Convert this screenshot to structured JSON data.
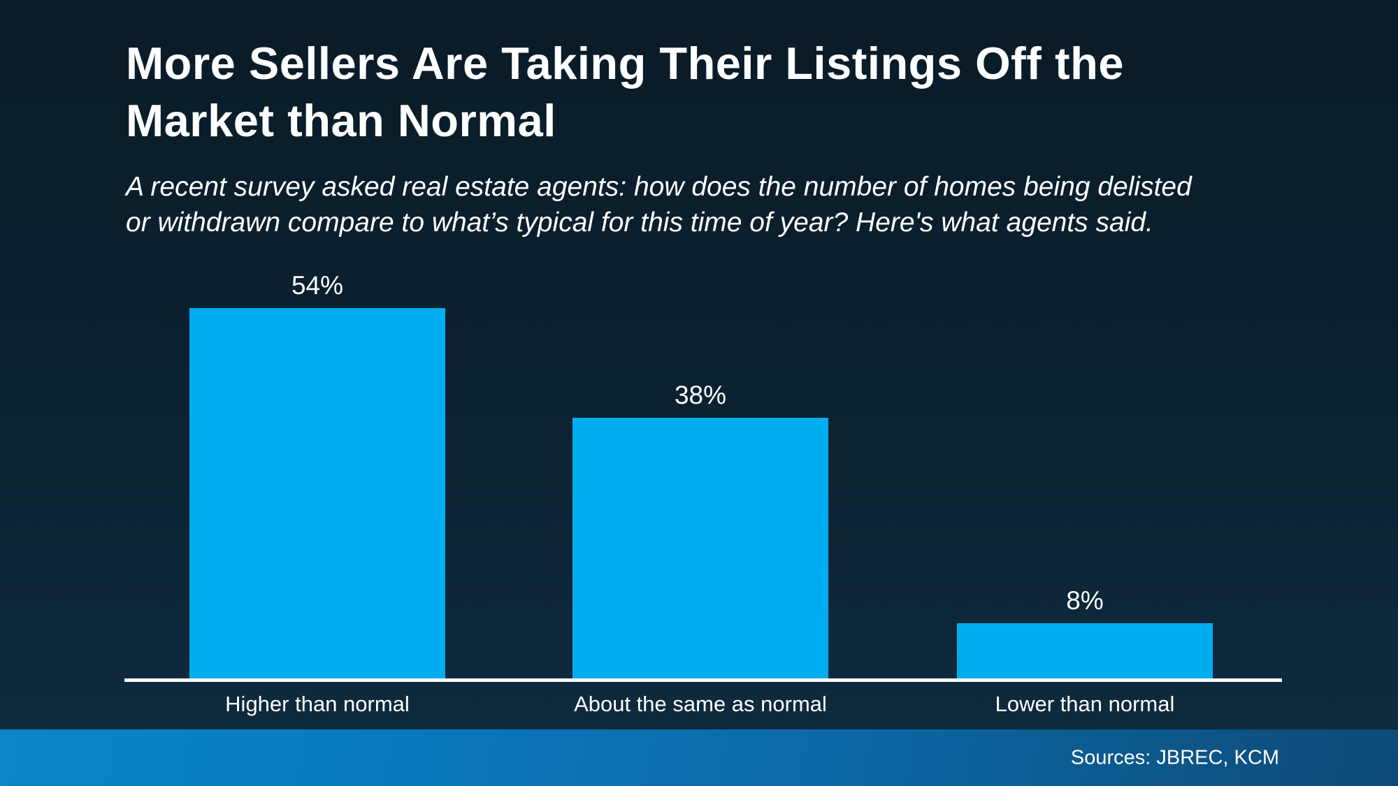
{
  "slide": {
    "title": {
      "line1": "More Sellers Are Taking Their Listings Off the",
      "line2": "Market than Normal"
    },
    "subtitle": {
      "line1": "A recent survey asked real estate agents: how does the number of homes being delisted",
      "line2": "or withdrawn compare to what’s typical for this time of year? Here's what agents said."
    },
    "footer": {
      "sources": "Sources: JBREC, KCM"
    }
  },
  "chart_data": {
    "type": "bar",
    "title": "More Sellers Are Taking Their Listings Off the Market than Normal",
    "subtitle": "A recent survey asked real estate agents: how does the number of homes being delisted or withdrawn compare to what’s typical for this time of year? Here's what agents said.",
    "categories": [
      "Higher than normal",
      "About the same as normal",
      "Lower than normal"
    ],
    "values": [
      54,
      38,
      8
    ],
    "value_labels": [
      "54%",
      "38%",
      "8%"
    ],
    "unit": "percent of agents",
    "ylim": [
      0,
      56
    ],
    "grid": false,
    "legend": false,
    "xlabel": "",
    "ylabel": "",
    "source": "Sources: JBREC, KCM"
  },
  "colors": {
    "background_top": "#0A1B27",
    "background_bottom": "#0E2C3F",
    "bar": "#00AEEF",
    "axis_line": "#FFFFFF",
    "footer_gradient_left": "#0B84C8",
    "footer_gradient_right": "#0D4A77",
    "text": "#FFFFFF"
  }
}
